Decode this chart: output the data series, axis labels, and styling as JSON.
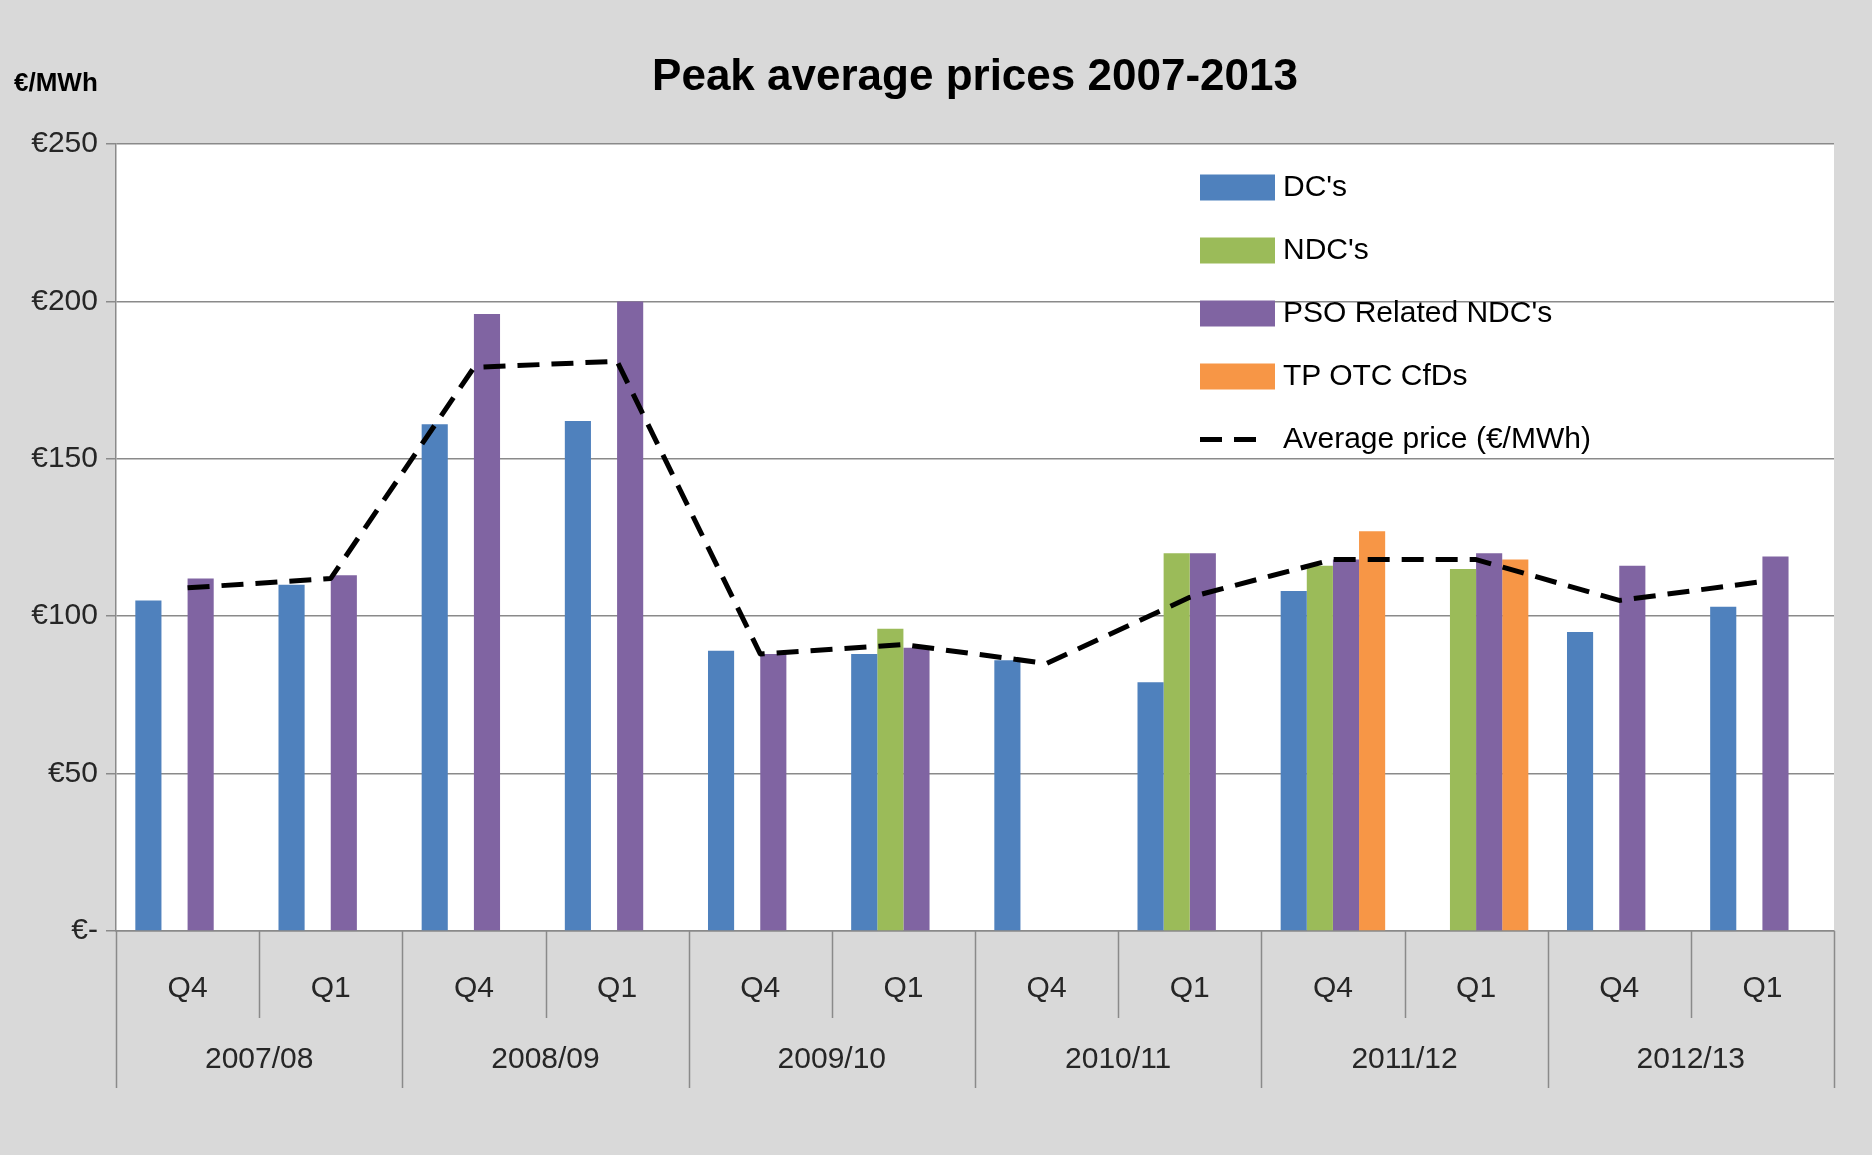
{
  "chart_data": {
    "type": "bar",
    "title": "Peak average prices 2007-2013",
    "ylabel": "€/MWh",
    "categories": [
      "Q4",
      "Q1",
      "Q4",
      "Q1",
      "Q4",
      "Q1",
      "Q4",
      "Q1",
      "Q4",
      "Q1",
      "Q4",
      "Q1"
    ],
    "annotations": [
      "2007/08",
      "2008/09",
      "2009/10",
      "2010/11",
      "2011/12",
      "2012/13"
    ],
    "series": [
      {
        "name": "DC's",
        "color": "#4f81bd",
        "values": [
          105,
          110,
          161,
          162,
          89,
          88,
          86,
          79,
          108,
          null,
          95,
          103
        ]
      },
      {
        "name": "NDC's",
        "color": "#9bbb59",
        "values": [
          null,
          null,
          null,
          null,
          null,
          96,
          null,
          120,
          116,
          115,
          null,
          null
        ]
      },
      {
        "name": "PSO Related NDC's",
        "color": "#8064a2",
        "values": [
          112,
          113,
          196,
          200,
          88,
          90,
          null,
          120,
          118,
          120,
          116,
          119
        ]
      },
      {
        "name": "TP OTC CfDs",
        "color": "#f79646",
        "values": [
          null,
          null,
          null,
          null,
          null,
          null,
          null,
          null,
          127,
          118,
          null,
          null
        ]
      },
      {
        "name": "Average price (€/MWh)",
        "type": "line",
        "color": "#000000",
        "values": [
          109,
          112,
          179,
          181,
          88,
          91,
          85,
          106,
          118,
          118,
          105,
          111
        ],
        "line_style": "dashed",
        "marker": "none"
      }
    ],
    "ylim": [
      0,
      250
    ],
    "yticks": [
      {
        "value": 0,
        "label": "€-"
      },
      {
        "value": 50,
        "label": "€50"
      },
      {
        "value": 100,
        "label": "€100"
      },
      {
        "value": 150,
        "label": "€150"
      },
      {
        "value": 200,
        "label": "€200"
      },
      {
        "value": 250,
        "label": "€250"
      }
    ],
    "grid": "y",
    "legend": "top right"
  }
}
